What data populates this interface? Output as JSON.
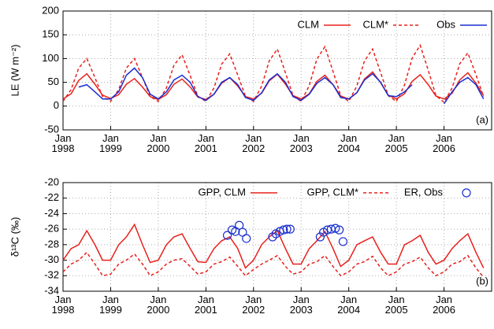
{
  "chart_data": [
    {
      "type": "line",
      "y_label": "LE (W m⁻²)",
      "annotation": "(a)",
      "grid": true,
      "xlim": [
        1998,
        2007
      ],
      "ylim": [
        -50,
        200
      ],
      "yticks": [
        -50,
        0,
        50,
        100,
        150,
        200
      ],
      "xticks": [
        {
          "value": 1998,
          "label": "Jan\n1998"
        },
        {
          "value": 1999,
          "label": "Jan\n1999"
        },
        {
          "value": 2000,
          "label": "Jan\n2000"
        },
        {
          "value": 2001,
          "label": "Jan\n2001"
        },
        {
          "value": 2002,
          "label": "Jan\n2002"
        },
        {
          "value": 2003,
          "label": "Jan\n2003"
        },
        {
          "value": 2004,
          "label": "Jan\n2004"
        },
        {
          "value": 2005,
          "label": "Jan\n2005"
        },
        {
          "value": 2006,
          "label": "Jan\n2006"
        }
      ],
      "x": [
        1998,
        1998.17,
        1998.33,
        1998.5,
        1998.67,
        1998.83,
        1999,
        1999.17,
        1999.33,
        1999.5,
        1999.67,
        1999.83,
        2000,
        2000.17,
        2000.33,
        2000.5,
        2000.67,
        2000.83,
        2001,
        2001.17,
        2001.33,
        2001.5,
        2001.67,
        2001.83,
        2002,
        2002.17,
        2002.33,
        2002.5,
        2002.67,
        2002.83,
        2003,
        2003.17,
        2003.33,
        2003.5,
        2003.67,
        2003.83,
        2004,
        2004.17,
        2004.33,
        2004.5,
        2004.67,
        2004.83,
        2005,
        2005.17,
        2005.33,
        2005.5,
        2005.67,
        2005.83,
        2006,
        2006.17,
        2006.33,
        2006.5,
        2006.67,
        2006.83
      ],
      "series": [
        {
          "name": "CLM",
          "color": "#e8201c",
          "line_style": "solid",
          "values": [
            15,
            26,
            54,
            68,
            46,
            23,
            16,
            24,
            46,
            58,
            40,
            20,
            14,
            24,
            46,
            57,
            40,
            19,
            14,
            25,
            48,
            60,
            42,
            20,
            15,
            27,
            53,
            67,
            46,
            22,
            15,
            26,
            52,
            65,
            45,
            21,
            15,
            28,
            57,
            72,
            49,
            23,
            15,
            26,
            52,
            66,
            45,
            21,
            15,
            27,
            55,
            70,
            48,
            22
          ]
        },
        {
          "name": "CLM*",
          "color": "#e8201c",
          "line_style": "dashed",
          "values": [
            10,
            35,
            80,
            100,
            60,
            20,
            10,
            35,
            80,
            100,
            60,
            20,
            10,
            38,
            86,
            108,
            64,
            21,
            10,
            38,
            88,
            110,
            65,
            21,
            10,
            42,
            95,
            120,
            70,
            22,
            10,
            43,
            99,
            125,
            73,
            22,
            10,
            42,
            95,
            120,
            70,
            22,
            10,
            44,
            101,
            128,
            75,
            22,
            8,
            38,
            89,
            112,
            66,
            20
          ]
        },
        {
          "name": "Obs",
          "color": "#1a2fd0",
          "line_style": "solid",
          "values": [
            null,
            null,
            40,
            45,
            30,
            15,
            15,
            30,
            65,
            80,
            60,
            25,
            15,
            30,
            55,
            65,
            50,
            20,
            12,
            25,
            50,
            60,
            45,
            18,
            12,
            28,
            55,
            68,
            50,
            20,
            12,
            25,
            48,
            60,
            45,
            18,
            15,
            28,
            55,
            68,
            50,
            22,
            20,
            30,
            45,
            null,
            null,
            null,
            5,
            30,
            50,
            60,
            45,
            15
          ]
        }
      ]
    },
    {
      "type": "line",
      "y_label": "δ¹³C (‰)",
      "annotation": "(b)",
      "grid": true,
      "xlim": [
        1998,
        2007
      ],
      "ylim": [
        -34,
        -20
      ],
      "yticks": [
        -34,
        -32,
        -30,
        -28,
        -26,
        -24,
        -22,
        -20
      ],
      "xticks": [
        {
          "value": 1998,
          "label": "Jan\n1998"
        },
        {
          "value": 1999,
          "label": "Jan\n1999"
        },
        {
          "value": 2000,
          "label": "Jan\n2000"
        },
        {
          "value": 2001,
          "label": "Jan\n2001"
        },
        {
          "value": 2002,
          "label": "Jan\n2002"
        },
        {
          "value": 2003,
          "label": "Jan\n2003"
        },
        {
          "value": 2004,
          "label": "Jan\n2004"
        },
        {
          "value": 2005,
          "label": "Jan\n2005"
        },
        {
          "value": 2006,
          "label": "Jan\n2006"
        }
      ],
      "x": [
        1998,
        1998.17,
        1998.33,
        1998.5,
        1998.67,
        1998.83,
        1999,
        1999.17,
        1999.33,
        1999.5,
        1999.67,
        1999.83,
        2000,
        2000.17,
        2000.33,
        2000.5,
        2000.67,
        2000.83,
        2001,
        2001.17,
        2001.33,
        2001.5,
        2001.67,
        2001.83,
        2002,
        2002.17,
        2002.33,
        2002.5,
        2002.67,
        2002.83,
        2003,
        2003.17,
        2003.33,
        2003.5,
        2003.67,
        2003.83,
        2004,
        2004.17,
        2004.33,
        2004.5,
        2004.67,
        2004.83,
        2005,
        2005.17,
        2005.33,
        2005.5,
        2005.67,
        2005.83,
        2006,
        2006.17,
        2006.33,
        2006.5,
        2006.67,
        2006.83
      ],
      "series": [
        {
          "name": "GPP, CLM",
          "color": "#e8201c",
          "line_style": "solid",
          "values": [
            -30,
            -28.5,
            -28,
            -26.2,
            -28,
            -30,
            -30,
            -28,
            -27,
            -25.4,
            -28,
            -30.3,
            -30,
            -28,
            -27,
            -26.6,
            -28.5,
            -30.2,
            -30.3,
            -28.5,
            -27.5,
            -27,
            -28.5,
            -31,
            -30,
            -28,
            -27,
            -26.2,
            -28.5,
            -30.5,
            -30.5,
            -28.5,
            -27.5,
            -26.3,
            -28.5,
            -30.8,
            -30,
            -28,
            -27.5,
            -27,
            -29,
            -30.5,
            -30.5,
            -28,
            -27.5,
            -26.8,
            -29,
            -30.5,
            -30,
            -28.5,
            -27.5,
            -26.6,
            -29,
            -31
          ]
        },
        {
          "name": "GPP, CLM*",
          "color": "#e8201c",
          "line_style": "dashed",
          "values": [
            -31.5,
            -30.5,
            -30,
            -29,
            -30.5,
            -32,
            -31.8,
            -30.5,
            -30,
            -29.2,
            -30.5,
            -32,
            -31.5,
            -30.5,
            -30,
            -29.8,
            -30.8,
            -31.8,
            -31.5,
            -30.5,
            -30.2,
            -29.6,
            -30.8,
            -32,
            -31.2,
            -30.5,
            -30,
            -29.4,
            -30.8,
            -31.8,
            -31.5,
            -30.5,
            -30.2,
            -29.4,
            -30.8,
            -32,
            -31.5,
            -30.5,
            -30.2,
            -29.5,
            -31,
            -32,
            -31.5,
            -30.5,
            -30.2,
            -29.6,
            -31,
            -32,
            -31.5,
            -30.5,
            -30.2,
            -29.4,
            -31,
            -32.2
          ]
        },
        {
          "name": "ER, Obs",
          "type": "scatter",
          "color": "#1a2fd0",
          "x": [
            2001.45,
            2001.55,
            2001.62,
            2001.7,
            2001.77,
            2001.85,
            2002.4,
            2002.47,
            2002.55,
            2002.63,
            2002.7,
            2002.77,
            2003.4,
            2003.47,
            2003.55,
            2003.63,
            2003.72,
            2003.8,
            2003.88
          ],
          "values": [
            -26.8,
            -26.1,
            -26.3,
            -25.5,
            -26.4,
            -27.2,
            -27,
            -26.6,
            -26.3,
            -26.1,
            -26,
            -26,
            -27,
            -26.4,
            -26.1,
            -26,
            -25.9,
            -26.1,
            -27.6
          ]
        }
      ]
    }
  ]
}
